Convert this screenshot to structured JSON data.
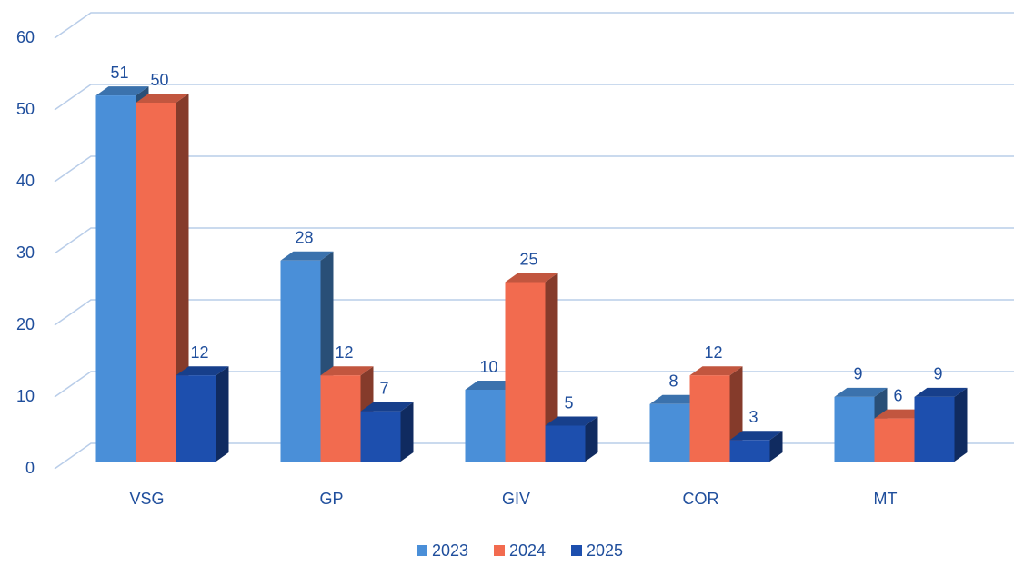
{
  "chart_data": {
    "type": "bar",
    "categories": [
      "VSG",
      "GP",
      "GIV",
      "COR",
      "MT"
    ],
    "series": [
      {
        "name": "2023",
        "color": "#4a8fd8",
        "values": [
          51,
          28,
          10,
          8,
          9
        ]
      },
      {
        "name": "2024",
        "color": "#f26b4f",
        "values": [
          50,
          12,
          25,
          12,
          6
        ]
      },
      {
        "name": "2025",
        "color": "#1d4fae",
        "values": [
          12,
          7,
          5,
          3,
          9
        ]
      }
    ],
    "ylim": [
      0,
      60
    ],
    "yticks": [
      0,
      10,
      20,
      30,
      40,
      50,
      60
    ],
    "grid": true,
    "legend": "bottom"
  }
}
